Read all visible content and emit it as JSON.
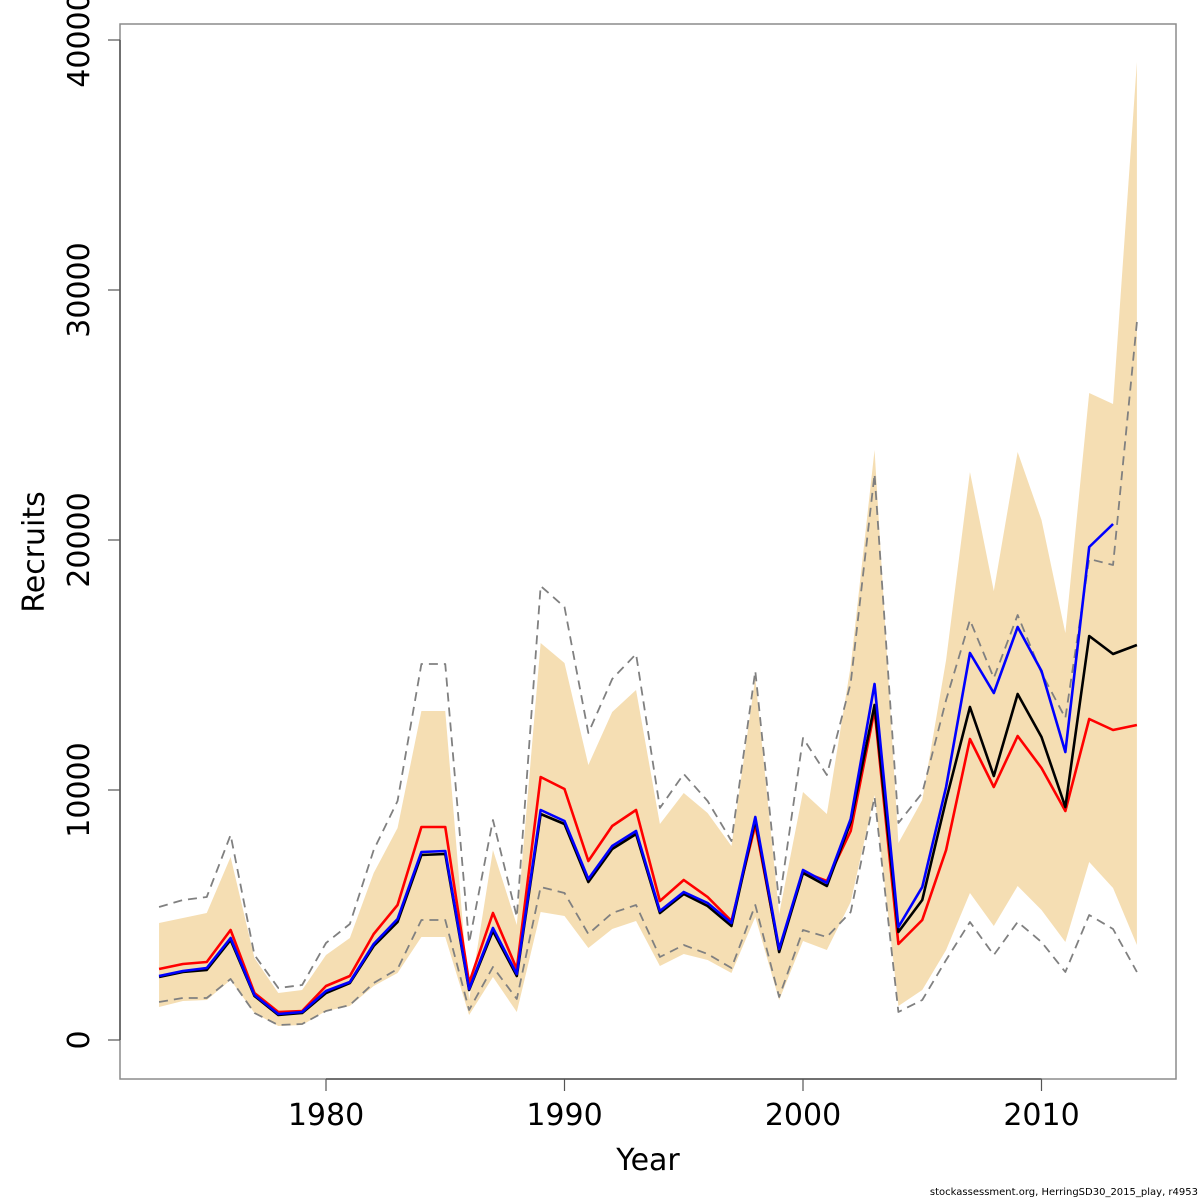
{
  "chart_data": {
    "type": "line",
    "title": "",
    "xlabel": "Year",
    "ylabel": "Recruits",
    "xlim": [
      1972.5,
      2015.5
    ],
    "ylim": [
      -1500,
      41500
    ],
    "xticks": [
      1980,
      1990,
      2000,
      2010
    ],
    "xtick_labels": [
      "1980",
      "1990",
      "2000",
      "2010"
    ],
    "yticks": [
      0,
      10000,
      20000,
      30000,
      40000
    ],
    "ytick_labels": [
      "0",
      "10000",
      "20000",
      "30000",
      "40000"
    ],
    "grid": false,
    "legend": null,
    "x": [
      1973,
      1974,
      1975,
      1976,
      1977,
      1978,
      1979,
      1980,
      1981,
      1982,
      1983,
      1984,
      1985,
      1986,
      1987,
      1988,
      1989,
      1990,
      1991,
      1992,
      1993,
      1994,
      1995,
      1996,
      1997,
      1998,
      1999,
      2000,
      2001,
      2002,
      2003,
      2004,
      2005,
      2006,
      2007,
      2008,
      2009,
      2010,
      2011,
      2012,
      2013,
      2014
    ],
    "band": {
      "name": "confidence-band",
      "color": "#F5DEB3",
      "upper": [
        4680,
        4880,
        5080,
        7320,
        3280,
        1880,
        2000,
        3400,
        4080,
        6680,
        8480,
        13160,
        13160,
        1600,
        7600,
        4600,
        15880,
        15080,
        11000,
        13120,
        14000,
        8640,
        9880,
        9080,
        7760,
        14480,
        5040,
        9920,
        9040,
        14960,
        23600,
        7880,
        9600,
        15200,
        22720,
        17960,
        23520,
        20800,
        16280,
        25880,
        25440,
        39120
      ],
      "lower": [
        1320,
        1560,
        1600,
        2400,
        1080,
        560,
        600,
        1160,
        1360,
        2160,
        2680,
        4120,
        4120,
        1000,
        2520,
        1120,
        5120,
        4960,
        3680,
        4440,
        4760,
        2960,
        3440,
        3200,
        2680,
        4920,
        1600,
        3960,
        3600,
        5520,
        9800,
        1360,
        2000,
        3600,
        5880,
        4560,
        6160,
        5200,
        3920,
        7120,
        6080,
        3800
      ]
    },
    "series": [
      {
        "name": "black",
        "color": "#000000",
        "dash": false,
        "values": [
          2520,
          2720,
          2800,
          4000,
          1760,
          1000,
          1080,
          1880,
          2280,
          3760,
          4720,
          7400,
          7440,
          2000,
          4360,
          2560,
          9040,
          8640,
          6320,
          7640,
          8240,
          5080,
          5840,
          5360,
          4560,
          8800,
          3520,
          6680,
          6160,
          8720,
          13400,
          4320,
          5600,
          9600,
          13320,
          10560,
          13840,
          12120,
          9320,
          16160,
          15440,
          15800
        ]
      },
      {
        "name": "red",
        "color": "#FF0000",
        "dash": false,
        "values": [
          2840,
          3040,
          3120,
          4400,
          1880,
          1120,
          1160,
          2160,
          2560,
          4240,
          5400,
          8520,
          8520,
          2280,
          5080,
          2840,
          10520,
          10040,
          7160,
          8560,
          9200,
          5560,
          6400,
          5720,
          4760,
          8600,
          3600,
          6720,
          6360,
          8360,
          13200,
          3840,
          4800,
          7600,
          12040,
          10120,
          12160,
          10880,
          9160,
          12840,
          12400,
          12600
        ]
      },
      {
        "name": "blue",
        "color": "#0000FF",
        "dash": false,
        "values": [
          2560,
          2760,
          2880,
          4080,
          1800,
          1040,
          1120,
          1960,
          2320,
          3840,
          4840,
          7520,
          7560,
          2040,
          4480,
          2640,
          9200,
          8760,
          6440,
          7760,
          8360,
          5160,
          5920,
          5480,
          4680,
          8920,
          3640,
          6800,
          6280,
          8840,
          14240,
          4520,
          6120,
          10120,
          15480,
          13880,
          16520,
          14760,
          11520,
          19720,
          20640,
          null
        ]
      },
      {
        "name": "dashed-upper",
        "color": "#808080",
        "dash": true,
        "values": [
          5320,
          5600,
          5720,
          8200,
          3400,
          2080,
          2200,
          3880,
          4640,
          7600,
          9560,
          15040,
          15040,
          3880,
          8800,
          4920,
          18160,
          17320,
          12280,
          14440,
          15440,
          9280,
          10640,
          9560,
          7960,
          14760,
          5480,
          12080,
          10600,
          14280,
          22640,
          8680,
          9880,
          13600,
          16800,
          14480,
          17000,
          14680,
          12880,
          19240,
          19000,
          28720
        ]
      },
      {
        "name": "dashed-lower",
        "color": "#808080",
        "dash": true,
        "values": [
          1520,
          1680,
          1680,
          2440,
          1080,
          600,
          640,
          1160,
          1400,
          2280,
          2840,
          4800,
          4800,
          1200,
          2920,
          1640,
          6120,
          5880,
          4240,
          5080,
          5400,
          3320,
          3800,
          3440,
          2880,
          5400,
          1720,
          4400,
          4120,
          5120,
          9720,
          1120,
          1600,
          3200,
          4720,
          3400,
          4720,
          3920,
          2720,
          5000,
          4440,
          2720
        ]
      }
    ]
  },
  "footer": {
    "text": "stockassessment.org, HerringSD30_2015_play, r4953"
  }
}
